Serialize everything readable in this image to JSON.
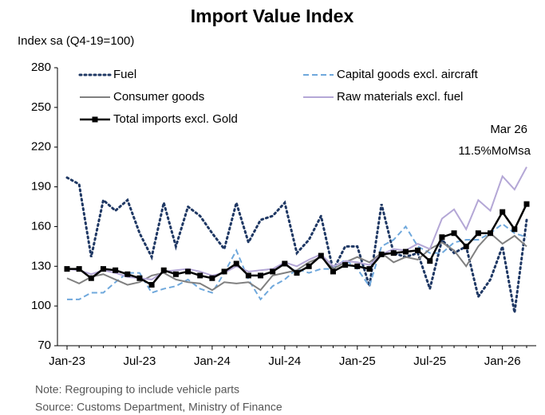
{
  "chart_data": {
    "type": "line",
    "title": "Import Value Index",
    "y_label": "Index sa (Q4-19=100)",
    "categories": [
      "Jan-23",
      null,
      null,
      null,
      null,
      null,
      "Jul-23",
      null,
      null,
      null,
      null,
      null,
      "Jan-24",
      null,
      null,
      null,
      null,
      null,
      "Jul-24",
      null,
      null,
      null,
      null,
      null,
      "Jan-25",
      null,
      null,
      null,
      null,
      null,
      "Jul-25",
      null,
      null,
      null,
      null,
      null,
      "Jan-26",
      null,
      null
    ],
    "ylim": [
      70,
      280
    ],
    "yticks": [
      70,
      100,
      130,
      160,
      190,
      220,
      250,
      280
    ],
    "series": [
      {
        "name": "Fuel",
        "color": "#1f3864",
        "line_style": "dotted",
        "values": [
          197,
          192,
          137,
          180,
          172,
          180,
          155,
          137,
          178,
          145,
          175,
          168,
          155,
          143,
          178,
          148,
          165,
          168,
          178,
          140,
          150,
          168,
          127,
          145,
          145,
          115,
          177,
          140,
          137,
          140,
          113,
          150,
          140,
          145,
          107,
          120,
          145,
          95,
          165
        ]
      },
      {
        "name": "Capital goods excl. aircraft",
        "color": "#6fa8dc",
        "line_style": "dashed",
        "values": [
          105,
          105,
          110,
          110,
          118,
          125,
          125,
          110,
          113,
          115,
          120,
          113,
          110,
          125,
          142,
          120,
          105,
          115,
          120,
          128,
          125,
          128,
          128,
          135,
          128,
          115,
          145,
          150,
          160,
          145,
          140,
          140,
          148,
          150,
          150,
          155,
          162,
          155,
          152
        ]
      },
      {
        "name": "Consumer goods",
        "color": "#808080",
        "line_style": "solid",
        "values": [
          121,
          117,
          122,
          124,
          120,
          116,
          118,
          123,
          125,
          120,
          118,
          117,
          112,
          118,
          117,
          118,
          112,
          123,
          125,
          127,
          133,
          137,
          128,
          133,
          137,
          133,
          140,
          133,
          137,
          135,
          143,
          148,
          142,
          130,
          145,
          155,
          147,
          153,
          145
        ]
      },
      {
        "name": "Raw materials excl. fuel",
        "color": "#b4a7d6",
        "line_style": "solid",
        "values": [
          128,
          127,
          124,
          127,
          125,
          122,
          121,
          120,
          126,
          127,
          128,
          126,
          123,
          125,
          130,
          126,
          127,
          128,
          133,
          130,
          135,
          139,
          130,
          134,
          133,
          131,
          139,
          143,
          142,
          147,
          143,
          166,
          173,
          158,
          180,
          172,
          198,
          188,
          205
        ]
      },
      {
        "name": "Total imports excl. Gold",
        "color": "#000000",
        "line_style": "solid",
        "marker": "square",
        "values": [
          128,
          128,
          121,
          128,
          127,
          124,
          121,
          116,
          127,
          124,
          126,
          123,
          121,
          126,
          132,
          123,
          123,
          126,
          132,
          125,
          130,
          138,
          126,
          131,
          130,
          128,
          139,
          140,
          141,
          142,
          134,
          152,
          155,
          145,
          155,
          155,
          171,
          158,
          177
        ]
      }
    ],
    "annotations": [
      "Mar 26",
      "11.5%MoMsa"
    ],
    "notes": [
      "Note: Regrouping to include vehicle parts",
      "Source: Customs Department, Ministry of Finance"
    ]
  }
}
